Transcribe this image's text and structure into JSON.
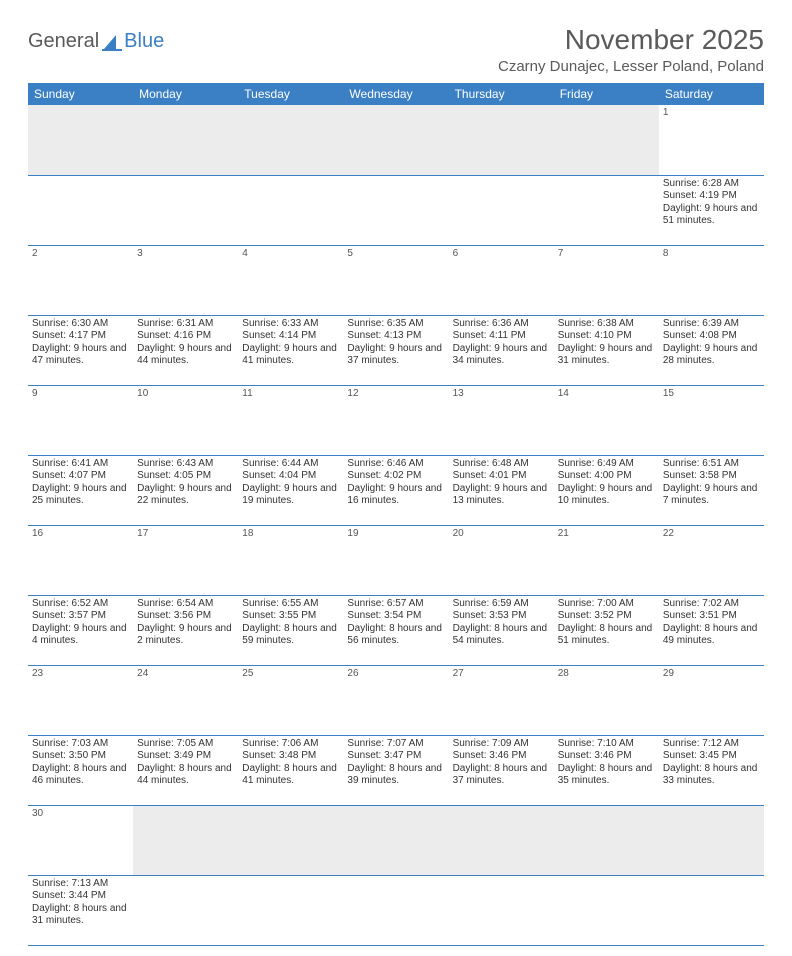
{
  "logo": {
    "text1": "General",
    "text2": "Blue"
  },
  "title": "November 2025",
  "location": "Czarny Dunajec, Lesser Poland, Poland",
  "colors": {
    "header_bg": "#3b7fc4",
    "header_fg": "#ffffff",
    "daynum_bg": "#ececec",
    "row_divider": "#3b7fc4",
    "text": "#333333"
  },
  "weekdays": [
    "Sunday",
    "Monday",
    "Tuesday",
    "Wednesday",
    "Thursday",
    "Friday",
    "Saturday"
  ],
  "weeks": [
    [
      null,
      null,
      null,
      null,
      null,
      null,
      {
        "n": 1,
        "sunrise": "6:28 AM",
        "sunset": "4:19 PM",
        "daylight": "9 hours and 51 minutes."
      }
    ],
    [
      {
        "n": 2,
        "sunrise": "6:30 AM",
        "sunset": "4:17 PM",
        "daylight": "9 hours and 47 minutes."
      },
      {
        "n": 3,
        "sunrise": "6:31 AM",
        "sunset": "4:16 PM",
        "daylight": "9 hours and 44 minutes."
      },
      {
        "n": 4,
        "sunrise": "6:33 AM",
        "sunset": "4:14 PM",
        "daylight": "9 hours and 41 minutes."
      },
      {
        "n": 5,
        "sunrise": "6:35 AM",
        "sunset": "4:13 PM",
        "daylight": "9 hours and 37 minutes."
      },
      {
        "n": 6,
        "sunrise": "6:36 AM",
        "sunset": "4:11 PM",
        "daylight": "9 hours and 34 minutes."
      },
      {
        "n": 7,
        "sunrise": "6:38 AM",
        "sunset": "4:10 PM",
        "daylight": "9 hours and 31 minutes."
      },
      {
        "n": 8,
        "sunrise": "6:39 AM",
        "sunset": "4:08 PM",
        "daylight": "9 hours and 28 minutes."
      }
    ],
    [
      {
        "n": 9,
        "sunrise": "6:41 AM",
        "sunset": "4:07 PM",
        "daylight": "9 hours and 25 minutes."
      },
      {
        "n": 10,
        "sunrise": "6:43 AM",
        "sunset": "4:05 PM",
        "daylight": "9 hours and 22 minutes."
      },
      {
        "n": 11,
        "sunrise": "6:44 AM",
        "sunset": "4:04 PM",
        "daylight": "9 hours and 19 minutes."
      },
      {
        "n": 12,
        "sunrise": "6:46 AM",
        "sunset": "4:02 PM",
        "daylight": "9 hours and 16 minutes."
      },
      {
        "n": 13,
        "sunrise": "6:48 AM",
        "sunset": "4:01 PM",
        "daylight": "9 hours and 13 minutes."
      },
      {
        "n": 14,
        "sunrise": "6:49 AM",
        "sunset": "4:00 PM",
        "daylight": "9 hours and 10 minutes."
      },
      {
        "n": 15,
        "sunrise": "6:51 AM",
        "sunset": "3:58 PM",
        "daylight": "9 hours and 7 minutes."
      }
    ],
    [
      {
        "n": 16,
        "sunrise": "6:52 AM",
        "sunset": "3:57 PM",
        "daylight": "9 hours and 4 minutes."
      },
      {
        "n": 17,
        "sunrise": "6:54 AM",
        "sunset": "3:56 PM",
        "daylight": "9 hours and 2 minutes."
      },
      {
        "n": 18,
        "sunrise": "6:55 AM",
        "sunset": "3:55 PM",
        "daylight": "8 hours and 59 minutes."
      },
      {
        "n": 19,
        "sunrise": "6:57 AM",
        "sunset": "3:54 PM",
        "daylight": "8 hours and 56 minutes."
      },
      {
        "n": 20,
        "sunrise": "6:59 AM",
        "sunset": "3:53 PM",
        "daylight": "8 hours and 54 minutes."
      },
      {
        "n": 21,
        "sunrise": "7:00 AM",
        "sunset": "3:52 PM",
        "daylight": "8 hours and 51 minutes."
      },
      {
        "n": 22,
        "sunrise": "7:02 AM",
        "sunset": "3:51 PM",
        "daylight": "8 hours and 49 minutes."
      }
    ],
    [
      {
        "n": 23,
        "sunrise": "7:03 AM",
        "sunset": "3:50 PM",
        "daylight": "8 hours and 46 minutes."
      },
      {
        "n": 24,
        "sunrise": "7:05 AM",
        "sunset": "3:49 PM",
        "daylight": "8 hours and 44 minutes."
      },
      {
        "n": 25,
        "sunrise": "7:06 AM",
        "sunset": "3:48 PM",
        "daylight": "8 hours and 41 minutes."
      },
      {
        "n": 26,
        "sunrise": "7:07 AM",
        "sunset": "3:47 PM",
        "daylight": "8 hours and 39 minutes."
      },
      {
        "n": 27,
        "sunrise": "7:09 AM",
        "sunset": "3:46 PM",
        "daylight": "8 hours and 37 minutes."
      },
      {
        "n": 28,
        "sunrise": "7:10 AM",
        "sunset": "3:46 PM",
        "daylight": "8 hours and 35 minutes."
      },
      {
        "n": 29,
        "sunrise": "7:12 AM",
        "sunset": "3:45 PM",
        "daylight": "8 hours and 33 minutes."
      }
    ],
    [
      {
        "n": 30,
        "sunrise": "7:13 AM",
        "sunset": "3:44 PM",
        "daylight": "8 hours and 31 minutes."
      },
      null,
      null,
      null,
      null,
      null,
      null
    ]
  ]
}
